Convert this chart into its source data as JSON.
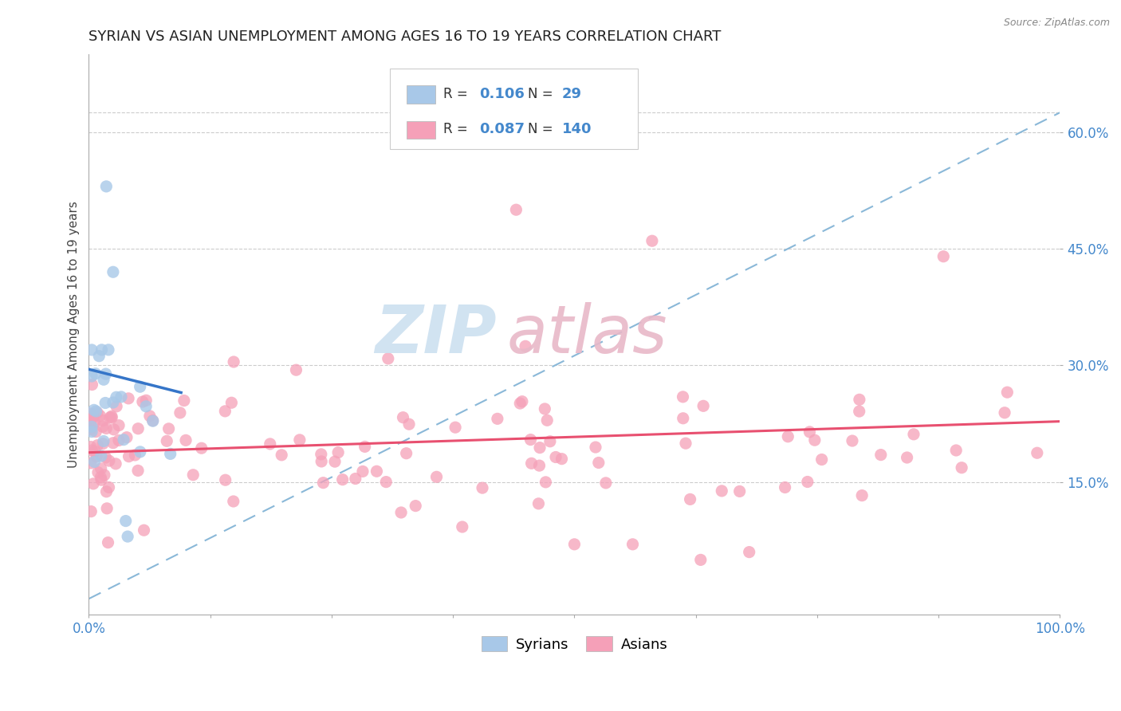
{
  "title": "SYRIAN VS ASIAN UNEMPLOYMENT AMONG AGES 16 TO 19 YEARS CORRELATION CHART",
  "source": "Source: ZipAtlas.com",
  "ylabel": "Unemployment Among Ages 16 to 19 years",
  "yticks_labels": [
    "15.0%",
    "30.0%",
    "45.0%",
    "60.0%"
  ],
  "yticks_vals": [
    0.15,
    0.3,
    0.45,
    0.6
  ],
  "xlim": [
    0.0,
    1.0
  ],
  "ylim": [
    -0.02,
    0.7
  ],
  "legend_r_syrian": "0.106",
  "legend_n_syrian": "29",
  "legend_r_asian": "0.087",
  "legend_n_asian": "140",
  "legend_label_syrian": "Syrians",
  "legend_label_asian": "Asians",
  "syrian_color": "#a8c8e8",
  "asian_color": "#f5a0b8",
  "syrian_line_color": "#3575c8",
  "asian_line_color": "#e85070",
  "dashed_line_color": "#8ab8d8",
  "watermark_zip_color": "#cce0f0",
  "watermark_atlas_color": "#e8b8c8",
  "background_color": "#ffffff",
  "title_color": "#222222",
  "title_fontsize": 13,
  "ylabel_fontsize": 11,
  "tick_color": "#4488cc",
  "tick_fontsize": 12,
  "grid_color": "#cccccc",
  "syrian_trendline_x": [
    0.0,
    0.095
  ],
  "syrian_trendline_y": [
    0.295,
    0.265
  ],
  "asian_trendline_x": [
    0.0,
    1.0
  ],
  "asian_trendline_y": [
    0.188,
    0.228
  ],
  "dashed_trendline_x": [
    0.0,
    1.0
  ],
  "dashed_trendline_y": [
    0.0,
    0.625
  ]
}
